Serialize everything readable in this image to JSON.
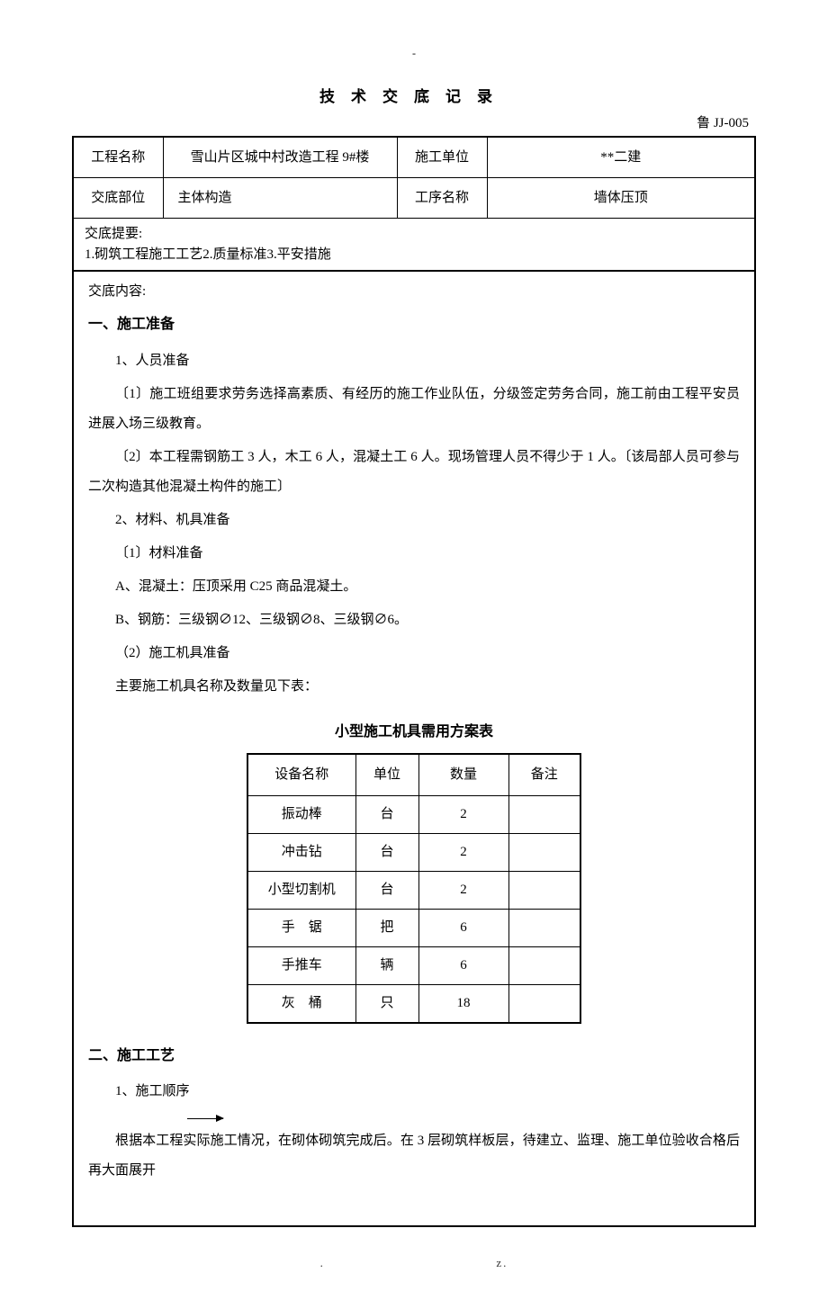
{
  "doc": {
    "dash": "-",
    "title": "技术交底记录",
    "code": "鲁 JJ-005"
  },
  "header": {
    "project_label": "工程名称",
    "project_value": "雪山片区城中村改造工程 9#楼",
    "unit_label": "施工单位",
    "unit_value": "**二建",
    "part_label": "交底部位",
    "part_value": "主体构造",
    "process_label": "工序名称",
    "process_value": "墙体压顶",
    "summary_label": "交底提要:",
    "summary_value": "1.砌筑工程施工工艺2.质量标准3.平安措施"
  },
  "content": {
    "label": "交底内容:",
    "s1": {
      "heading": "一、施工准备",
      "p1": "1、人员准备",
      "p2": "〔1〕施工班组要求劳务选择高素质、有经历的施工作业队伍，分级签定劳务合同，施工前由工程平安员进展入场三级教育。",
      "p3": "〔2〕本工程需钢筋工 3 人，木工 6 人，混凝土工 6 人。现场管理人员不得少于 1 人。〔该局部人员可参与二次构造其他混凝土构件的施工〕",
      "p4": "2、材料、机具准备",
      "p5": "〔1〕材料准备",
      "p6": "A、混凝土：压顶采用 C25 商品混凝土。",
      "p7": "B、钢筋：三级钢∅12、三级钢∅8、三级钢∅6。",
      "p8": "（2）施工机具准备",
      "p9": "主要施工机具名称及数量见下表："
    },
    "equipment": {
      "title": "小型施工机具需用方案表",
      "columns": [
        "设备名称",
        "单位",
        "数量",
        "备注"
      ],
      "rows": [
        [
          "振动棒",
          "台",
          "2",
          ""
        ],
        [
          "冲击钻",
          "台",
          "2",
          ""
        ],
        [
          "小型切割机",
          "台",
          "2",
          ""
        ],
        [
          "手　锯",
          "把",
          "6",
          ""
        ],
        [
          "手推车",
          "辆",
          "6",
          ""
        ],
        [
          "灰　桶",
          "只",
          "18",
          ""
        ]
      ],
      "col_widths": [
        "120px",
        "70px",
        "100px",
        "80px"
      ]
    },
    "s2": {
      "heading": "二、施工工艺",
      "p1": "1、施工顺序",
      "p2": "根据本工程实际施工情况，在砌体砌筑完成后。在 3 层砌筑样板层，待建立、监理、施工单位验收合格后再大面展开"
    }
  },
  "footer": {
    "left": ".",
    "right": "z."
  }
}
